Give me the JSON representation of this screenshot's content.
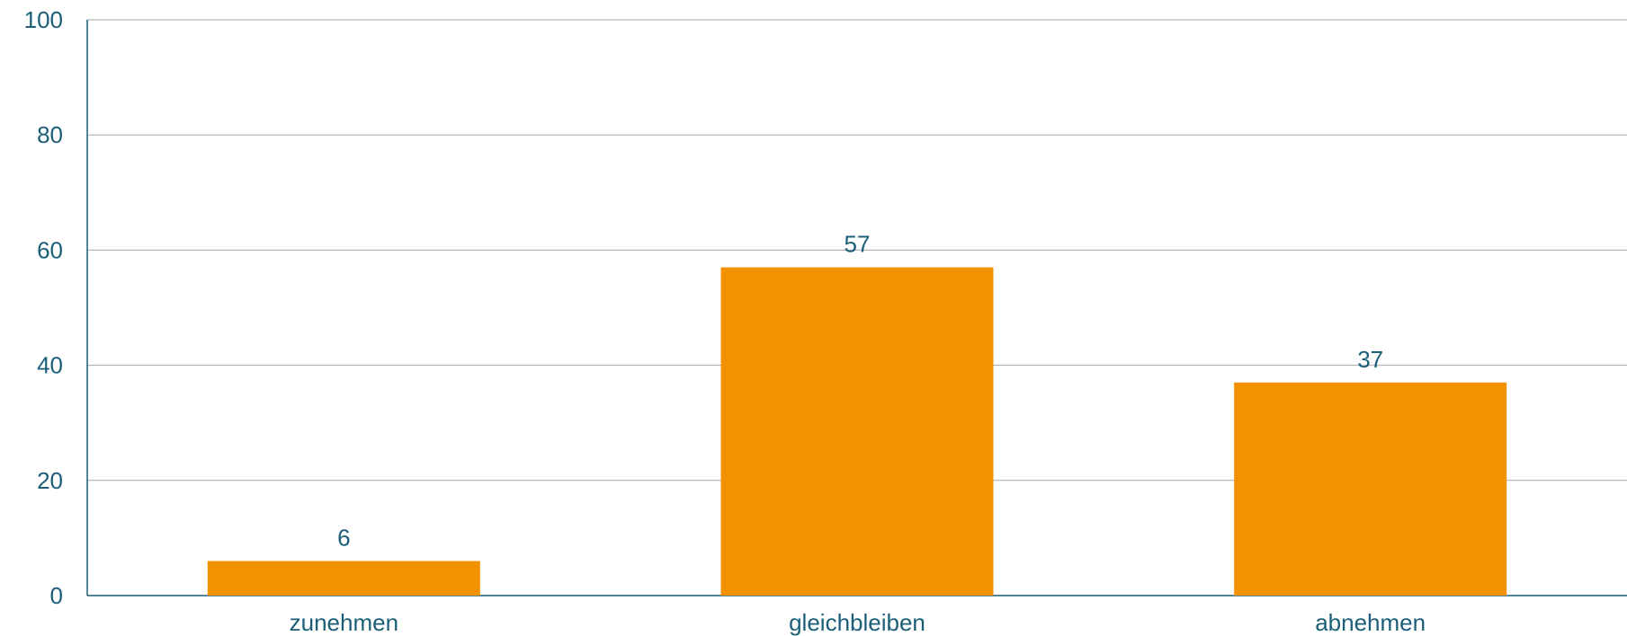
{
  "chart_data": {
    "type": "bar",
    "categories": [
      "zunehmen",
      "gleichbleiben",
      "abnehmen"
    ],
    "values": [
      6,
      57,
      37
    ],
    "data_labels": [
      "6",
      "57",
      "37"
    ],
    "ylim": [
      0,
      100
    ],
    "yticks": [
      "0",
      "20",
      "40",
      "60",
      "80",
      "100"
    ],
    "ytick_values": [
      0,
      20,
      40,
      60,
      80,
      100
    ],
    "grid": true,
    "legend": "none",
    "title": "",
    "xlabel": "",
    "ylabel": ""
  },
  "colors": {
    "bar": "#F39200",
    "text": "#1B5E78",
    "axis": "#1B5E78",
    "grid": "#A6A6A6"
  }
}
